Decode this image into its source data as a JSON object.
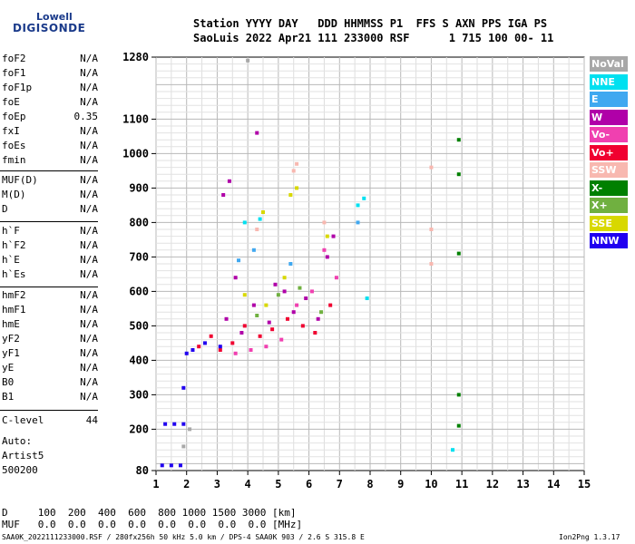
{
  "logo": {
    "brand_top": "Lowell",
    "brand_bottom": "DIGISONDE"
  },
  "header": {
    "line1": "Station YYYY DAY   DDD HHMMSS P1  FFS S AXN PPS IGA PS",
    "line2": "SaoLuis 2022 Apr21 111 233000 RSF      1 715 100 00- 11"
  },
  "params": {
    "group1": [
      {
        "name": "foF2",
        "value": "N/A"
      },
      {
        "name": "foF1",
        "value": "N/A"
      },
      {
        "name": "foF1p",
        "value": "N/A"
      },
      {
        "name": "foE",
        "value": "N/A"
      },
      {
        "name": "foEp",
        "value": "0.35"
      },
      {
        "name": "fxI",
        "value": "N/A"
      },
      {
        "name": "foEs",
        "value": "N/A"
      },
      {
        "name": "fmin",
        "value": "N/A"
      }
    ],
    "group2": [
      {
        "name": "MUF(D)",
        "value": "N/A"
      },
      {
        "name": "M(D)",
        "value": "N/A"
      },
      {
        "name": "D",
        "value": "N/A"
      }
    ],
    "group3": [
      {
        "name": "h`F",
        "value": "N/A"
      },
      {
        "name": "h`F2",
        "value": "N/A"
      },
      {
        "name": "h`E",
        "value": "N/A"
      },
      {
        "name": "h`Es",
        "value": "N/A"
      }
    ],
    "group4": [
      {
        "name": "hmF2",
        "value": "N/A"
      },
      {
        "name": "hmF1",
        "value": "N/A"
      },
      {
        "name": "hmE",
        "value": "N/A"
      },
      {
        "name": "yF2",
        "value": "N/A"
      },
      {
        "name": "yF1",
        "value": "N/A"
      },
      {
        "name": "yE",
        "value": "N/A"
      },
      {
        "name": "B0",
        "value": "N/A"
      },
      {
        "name": "B1",
        "value": "N/A"
      }
    ],
    "clevel": {
      "name": "C-level",
      "value": "44"
    },
    "auto": {
      "line1": "Auto:",
      "line2": "Artist5",
      "line3": "500200"
    }
  },
  "bottom_table": {
    "d_row": "D     100  200  400  600  800 1000 1500 3000 [km]",
    "muf_row": "MUF   0.0  0.0  0.0  0.0  0.0  0.0  0.0  0.0 [MHz]"
  },
  "footer": {
    "file": "SAA0K_2022111233000.RSF / 280fx256h 50 kHz 5.0 km / DPS-4 SAA0K 903 / 2.6 S 315.8 E",
    "version": "Ion2Png 1.3.17"
  },
  "legend": [
    {
      "label": "NoVal",
      "color": "#a8a8a8"
    },
    {
      "label": "NNE",
      "color": "#00e0f0"
    },
    {
      "label": "E",
      "color": "#40a8f0"
    },
    {
      "label": "W",
      "color": "#b000a8"
    },
    {
      "label": "Vo-",
      "color": "#f040b0"
    },
    {
      "label": "Vo+",
      "color": "#f00030"
    },
    {
      "label": "SSW",
      "color": "#f8b8b0"
    },
    {
      "label": "X-",
      "color": "#008000"
    },
    {
      "label": "X+",
      "color": "#70b040"
    },
    {
      "label": "SSE",
      "color": "#d8d800"
    },
    {
      "label": "NNW",
      "color": "#2000f0"
    }
  ],
  "chart_data": {
    "type": "scatter",
    "title": "",
    "xlabel": "",
    "ylabel": "",
    "xlim": [
      1,
      15
    ],
    "ylim": [
      80,
      1280
    ],
    "x_ticks": [
      1,
      2,
      3,
      4,
      5,
      6,
      7,
      8,
      9,
      10,
      11,
      12,
      13,
      14,
      15
    ],
    "y_ticks": [
      80,
      200,
      300,
      400,
      500,
      600,
      700,
      800,
      900,
      1000,
      1100,
      1280
    ],
    "grid": true,
    "series": [
      {
        "name": "W",
        "color": "#b000a8",
        "points": [
          [
            3.3,
            520
          ],
          [
            3.8,
            480
          ],
          [
            4.2,
            560
          ],
          [
            4.7,
            510
          ],
          [
            5.2,
            600
          ],
          [
            5.5,
            540
          ],
          [
            5.9,
            580
          ],
          [
            6.3,
            520
          ],
          [
            6.6,
            700
          ],
          [
            6.8,
            760
          ],
          [
            3.2,
            880
          ],
          [
            3.4,
            920
          ],
          [
            4.3,
            1060
          ],
          [
            3.6,
            640
          ],
          [
            4.9,
            620
          ]
        ]
      },
      {
        "name": "Vo+",
        "color": "#f00030",
        "points": [
          [
            2.4,
            440
          ],
          [
            2.8,
            470
          ],
          [
            3.1,
            430
          ],
          [
            3.5,
            450
          ],
          [
            3.9,
            500
          ],
          [
            4.4,
            470
          ],
          [
            4.8,
            490
          ],
          [
            5.3,
            520
          ],
          [
            5.8,
            500
          ],
          [
            6.2,
            480
          ],
          [
            6.7,
            560
          ]
        ]
      },
      {
        "name": "Vo-",
        "color": "#f040b0",
        "points": [
          [
            3.6,
            420
          ],
          [
            4.1,
            430
          ],
          [
            4.6,
            440
          ],
          [
            5.1,
            460
          ],
          [
            5.6,
            560
          ],
          [
            6.1,
            600
          ],
          [
            6.5,
            720
          ],
          [
            6.9,
            640
          ]
        ]
      },
      {
        "name": "NNW",
        "color": "#2000f0",
        "points": [
          [
            1.2,
            95
          ],
          [
            1.5,
            95
          ],
          [
            1.8,
            95
          ],
          [
            1.3,
            215
          ],
          [
            1.6,
            215
          ],
          [
            1.9,
            215
          ],
          [
            2.0,
            420
          ],
          [
            2.2,
            430
          ],
          [
            1.9,
            320
          ],
          [
            2.6,
            450
          ],
          [
            3.1,
            440
          ]
        ]
      },
      {
        "name": "SSE",
        "color": "#d8d800",
        "points": [
          [
            3.9,
            590
          ],
          [
            4.6,
            560
          ],
          [
            5.2,
            640
          ],
          [
            5.4,
            880
          ],
          [
            5.6,
            900
          ],
          [
            4.5,
            830
          ],
          [
            6.6,
            760
          ]
        ]
      },
      {
        "name": "X+",
        "color": "#70b040",
        "points": [
          [
            4.3,
            530
          ],
          [
            5.0,
            590
          ],
          [
            5.7,
            610
          ],
          [
            6.4,
            540
          ]
        ]
      },
      {
        "name": "X-",
        "color": "#008000",
        "points": [
          [
            10.9,
            1040
          ],
          [
            10.9,
            940
          ],
          [
            10.9,
            710
          ],
          [
            10.9,
            300
          ],
          [
            10.9,
            210
          ]
        ]
      },
      {
        "name": "NNE",
        "color": "#00e0f0",
        "points": [
          [
            3.9,
            800
          ],
          [
            4.4,
            810
          ],
          [
            7.6,
            850
          ],
          [
            7.8,
            870
          ],
          [
            10.7,
            140
          ],
          [
            7.9,
            580
          ]
        ]
      },
      {
        "name": "E",
        "color": "#40a8f0",
        "points": [
          [
            3.7,
            690
          ],
          [
            4.2,
            720
          ],
          [
            5.4,
            680
          ],
          [
            7.6,
            800
          ]
        ]
      },
      {
        "name": "SSW",
        "color": "#f8b8b0",
        "points": [
          [
            5.6,
            970
          ],
          [
            5.5,
            950
          ],
          [
            4.3,
            780
          ],
          [
            10.0,
            960
          ],
          [
            10.0,
            780
          ],
          [
            6.5,
            800
          ],
          [
            10.0,
            680
          ]
        ]
      },
      {
        "name": "NoVal",
        "color": "#a8a8a8",
        "points": [
          [
            1.9,
            150
          ],
          [
            2.1,
            200
          ],
          [
            4.0,
            1270
          ]
        ]
      }
    ]
  }
}
